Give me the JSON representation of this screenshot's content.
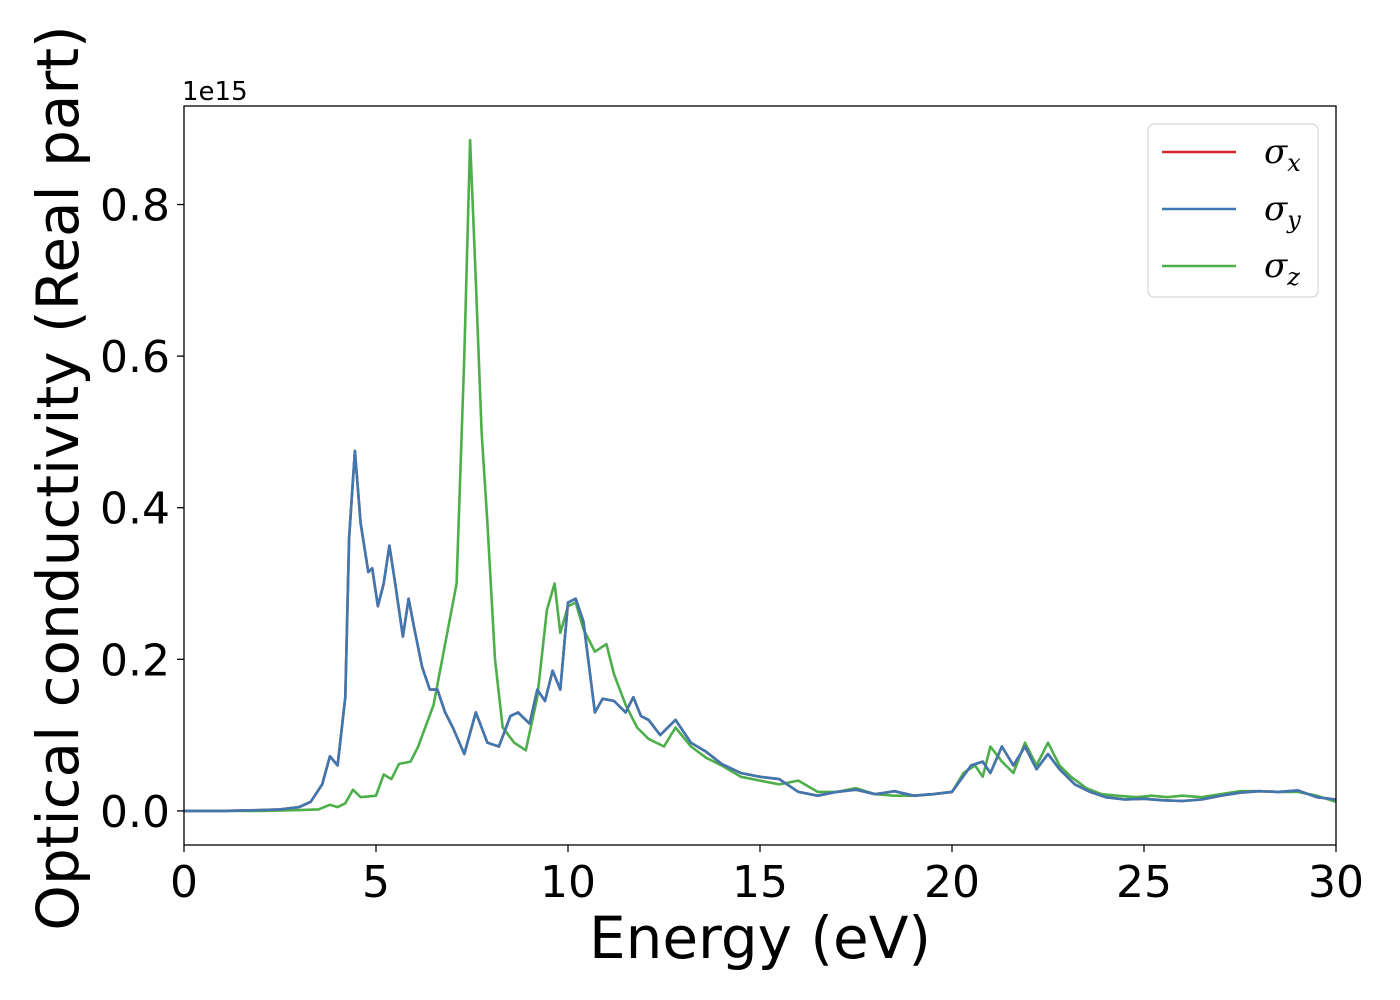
{
  "chart_data": {
    "type": "line",
    "xlabel": "Energy (eV)",
    "ylabel": "Optical conductivity (Real part)",
    "y_offset_label": "1e15",
    "xlim": [
      0,
      30
    ],
    "ylim": [
      -0.045,
      0.93
    ],
    "x_ticks": [
      0,
      5,
      10,
      15,
      20,
      25,
      30
    ],
    "y_ticks": [
      0.0,
      0.2,
      0.4,
      0.6,
      0.8
    ],
    "x_tick_labels": [
      "0",
      "5",
      "10",
      "15",
      "20",
      "25",
      "30"
    ],
    "y_tick_labels": [
      "0.0",
      "0.2",
      "0.4",
      "0.6",
      "0.8"
    ],
    "grid": false,
    "legend_position": "top-right",
    "series": [
      {
        "name": "σx",
        "legend_symbol": "σ",
        "legend_sub": "x",
        "color": "#d62728",
        "x": [
          0,
          1,
          2,
          2.5,
          3,
          3.3,
          3.6,
          3.8,
          4.0,
          4.2,
          4.3,
          4.45,
          4.6,
          4.8,
          4.9,
          5.05,
          5.2,
          5.35,
          5.5,
          5.7,
          5.85,
          6.0,
          6.2,
          6.4,
          6.6,
          6.8,
          7.0,
          7.3,
          7.6,
          7.9,
          8.2,
          8.5,
          8.7,
          9.0,
          9.2,
          9.4,
          9.6,
          9.8,
          10.0,
          10.2,
          10.4,
          10.7,
          10.9,
          11.2,
          11.5,
          11.7,
          11.9,
          12.1,
          12.4,
          12.8,
          13.2,
          13.6,
          14.0,
          14.5,
          15.0,
          15.5,
          16.0,
          16.5,
          17.0,
          17.5,
          18.0,
          18.5,
          19.0,
          19.5,
          20.0,
          20.5,
          20.8,
          21.0,
          21.3,
          21.6,
          21.9,
          22.2,
          22.5,
          22.8,
          23.2,
          23.6,
          24.0,
          24.5,
          25.0,
          25.5,
          26.0,
          26.5,
          27.0,
          27.5,
          28.0,
          28.5,
          29.0,
          29.5,
          30.0
        ],
        "y": [
          0.0,
          0.0,
          0.001,
          0.002,
          0.005,
          0.012,
          0.035,
          0.072,
          0.06,
          0.15,
          0.36,
          0.475,
          0.38,
          0.315,
          0.32,
          0.27,
          0.3,
          0.35,
          0.3,
          0.23,
          0.28,
          0.24,
          0.19,
          0.16,
          0.16,
          0.13,
          0.11,
          0.075,
          0.13,
          0.09,
          0.085,
          0.125,
          0.13,
          0.115,
          0.16,
          0.145,
          0.185,
          0.16,
          0.275,
          0.28,
          0.25,
          0.13,
          0.148,
          0.145,
          0.13,
          0.15,
          0.125,
          0.12,
          0.1,
          0.12,
          0.09,
          0.078,
          0.062,
          0.05,
          0.045,
          0.042,
          0.025,
          0.02,
          0.025,
          0.028,
          0.022,
          0.026,
          0.02,
          0.022,
          0.025,
          0.06,
          0.065,
          0.05,
          0.085,
          0.06,
          0.085,
          0.055,
          0.075,
          0.055,
          0.035,
          0.025,
          0.018,
          0.015,
          0.016,
          0.014,
          0.013,
          0.015,
          0.02,
          0.024,
          0.026,
          0.025,
          0.027,
          0.018,
          0.015
        ]
      },
      {
        "name": "σy",
        "legend_symbol": "σ",
        "legend_sub": "y",
        "color": "#3f78b0",
        "x": [
          0,
          1,
          2,
          2.5,
          3,
          3.3,
          3.6,
          3.8,
          4.0,
          4.2,
          4.3,
          4.45,
          4.6,
          4.8,
          4.9,
          5.05,
          5.2,
          5.35,
          5.5,
          5.7,
          5.85,
          6.0,
          6.2,
          6.4,
          6.6,
          6.8,
          7.0,
          7.3,
          7.6,
          7.9,
          8.2,
          8.5,
          8.7,
          9.0,
          9.2,
          9.4,
          9.6,
          9.8,
          10.0,
          10.2,
          10.4,
          10.7,
          10.9,
          11.2,
          11.5,
          11.7,
          11.9,
          12.1,
          12.4,
          12.8,
          13.2,
          13.6,
          14.0,
          14.5,
          15.0,
          15.5,
          16.0,
          16.5,
          17.0,
          17.5,
          18.0,
          18.5,
          19.0,
          19.5,
          20.0,
          20.5,
          20.8,
          21.0,
          21.3,
          21.6,
          21.9,
          22.2,
          22.5,
          22.8,
          23.2,
          23.6,
          24.0,
          24.5,
          25.0,
          25.5,
          26.0,
          26.5,
          27.0,
          27.5,
          28.0,
          28.5,
          29.0,
          29.5,
          30.0
        ],
        "y": [
          0.0,
          0.0,
          0.001,
          0.002,
          0.005,
          0.012,
          0.035,
          0.072,
          0.06,
          0.15,
          0.36,
          0.475,
          0.38,
          0.315,
          0.32,
          0.27,
          0.3,
          0.35,
          0.3,
          0.23,
          0.28,
          0.24,
          0.19,
          0.16,
          0.16,
          0.13,
          0.11,
          0.075,
          0.13,
          0.09,
          0.085,
          0.125,
          0.13,
          0.115,
          0.16,
          0.145,
          0.185,
          0.16,
          0.275,
          0.28,
          0.25,
          0.13,
          0.148,
          0.145,
          0.13,
          0.15,
          0.125,
          0.12,
          0.1,
          0.12,
          0.09,
          0.078,
          0.062,
          0.05,
          0.045,
          0.042,
          0.025,
          0.02,
          0.025,
          0.028,
          0.022,
          0.026,
          0.02,
          0.022,
          0.025,
          0.06,
          0.065,
          0.05,
          0.085,
          0.06,
          0.085,
          0.055,
          0.075,
          0.055,
          0.035,
          0.025,
          0.018,
          0.015,
          0.016,
          0.014,
          0.013,
          0.015,
          0.02,
          0.024,
          0.026,
          0.025,
          0.027,
          0.018,
          0.015
        ]
      },
      {
        "name": "σz",
        "legend_symbol": "σ",
        "legend_sub": "z",
        "color": "#4daf4a",
        "x": [
          0,
          2,
          3,
          3.5,
          3.8,
          4.0,
          4.2,
          4.4,
          4.6,
          5.0,
          5.2,
          5.4,
          5.6,
          5.9,
          6.1,
          6.5,
          6.8,
          7.1,
          7.3,
          7.45,
          7.6,
          7.75,
          7.9,
          8.1,
          8.3,
          8.6,
          8.9,
          9.2,
          9.45,
          9.65,
          9.8,
          10.0,
          10.2,
          10.4,
          10.7,
          11.0,
          11.2,
          11.5,
          11.8,
          12.1,
          12.5,
          12.8,
          13.2,
          13.6,
          14.0,
          14.5,
          15.0,
          15.5,
          16.0,
          16.5,
          17.0,
          17.5,
          18.0,
          18.5,
          19.0,
          19.5,
          20.0,
          20.3,
          20.6,
          20.8,
          21.0,
          21.3,
          21.6,
          21.9,
          22.2,
          22.5,
          22.8,
          23.1,
          23.5,
          23.9,
          24.3,
          24.8,
          25.2,
          25.6,
          26.0,
          26.5,
          27.0,
          27.5,
          28.0,
          28.5,
          29.0,
          29.5,
          30.0
        ],
        "y": [
          0.0,
          0.0,
          0.001,
          0.002,
          0.008,
          0.005,
          0.01,
          0.028,
          0.018,
          0.02,
          0.048,
          0.042,
          0.062,
          0.065,
          0.085,
          0.14,
          0.22,
          0.3,
          0.6,
          0.885,
          0.7,
          0.5,
          0.38,
          0.2,
          0.11,
          0.09,
          0.08,
          0.15,
          0.265,
          0.3,
          0.235,
          0.27,
          0.275,
          0.24,
          0.21,
          0.22,
          0.18,
          0.14,
          0.11,
          0.095,
          0.085,
          0.11,
          0.085,
          0.07,
          0.06,
          0.045,
          0.04,
          0.035,
          0.04,
          0.025,
          0.025,
          0.03,
          0.022,
          0.02,
          0.02,
          0.022,
          0.025,
          0.05,
          0.06,
          0.045,
          0.085,
          0.065,
          0.05,
          0.09,
          0.06,
          0.09,
          0.06,
          0.045,
          0.03,
          0.022,
          0.02,
          0.018,
          0.02,
          0.018,
          0.02,
          0.018,
          0.022,
          0.026,
          0.026,
          0.025,
          0.025,
          0.02,
          0.012
        ]
      }
    ]
  }
}
